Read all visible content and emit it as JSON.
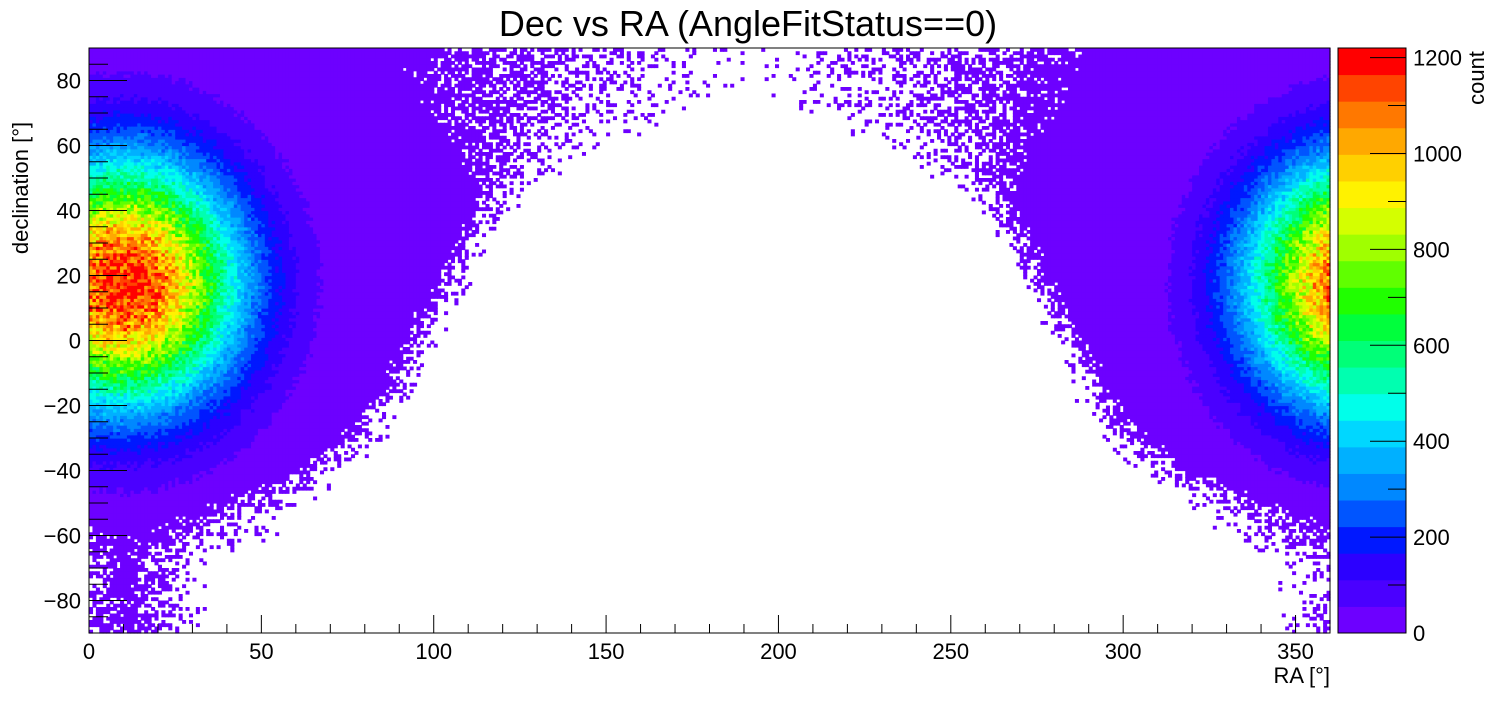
{
  "chart_data": {
    "type": "heatmap",
    "title": "Dec vs RA (AngleFitStatus==0)",
    "xlabel": "RA [°]",
    "ylabel": "declination [°]",
    "zlabel": "count",
    "xlim": [
      0,
      360
    ],
    "ylim": [
      -90,
      90
    ],
    "zlim": [
      0,
      1220
    ],
    "x_ticks": [
      0,
      50,
      100,
      150,
      200,
      250,
      300,
      350
    ],
    "x_tick_labels": [
      "0",
      "50",
      "100",
      "150",
      "200",
      "250",
      "300",
      "350"
    ],
    "y_ticks": [
      -80,
      -60,
      -40,
      -20,
      0,
      20,
      40,
      60,
      80
    ],
    "y_tick_labels": [
      "−80",
      "−60",
      "−40",
      "−20",
      "0",
      "20",
      "40",
      "60",
      "80"
    ],
    "z_ticks": [
      0,
      200,
      400,
      600,
      800,
      1000,
      1200
    ],
    "z_tick_labels": [
      "0",
      "200",
      "400",
      "600",
      "800",
      "1000",
      "1200"
    ],
    "grid": false,
    "legend": "colorbar-right",
    "bins": {
      "ra_bin_width": 1,
      "dec_bin_width": 1
    },
    "hotspot": {
      "ra": 10,
      "dec": 18,
      "peak_count": 1200
    },
    "outer_boundary": {
      "dec": [
        -68,
        -60,
        -45,
        -30,
        -15,
        0,
        15,
        30,
        45,
        60,
        75,
        90
      ],
      "ra_halfwidth": [
        25,
        45,
        62,
        77,
        86,
        92,
        100,
        107,
        117,
        142,
        175,
        190
      ]
    },
    "dense_boundary": {
      "dec": [
        -60,
        -50,
        -40,
        -30,
        -20,
        -10,
        0,
        10,
        20,
        30,
        40,
        50,
        60,
        70,
        80,
        90
      ],
      "ra_halfwidth": [
        0,
        25,
        48,
        62,
        70,
        75,
        80,
        85,
        90,
        95,
        100,
        100,
        95,
        88,
        82,
        80
      ]
    },
    "palette": [
      "#6d00ff",
      "#4a00ff",
      "#2c00ff",
      "#0018ff",
      "#0055ff",
      "#0088ff",
      "#00b0ff",
      "#00d7ff",
      "#00ffea",
      "#00ffb0",
      "#00ff78",
      "#00ff3c",
      "#20ff00",
      "#60ff00",
      "#a0ff00",
      "#d4ff00",
      "#fff200",
      "#ffd000",
      "#ffa800",
      "#ff7800",
      "#ff4400",
      "#ff0000"
    ]
  }
}
